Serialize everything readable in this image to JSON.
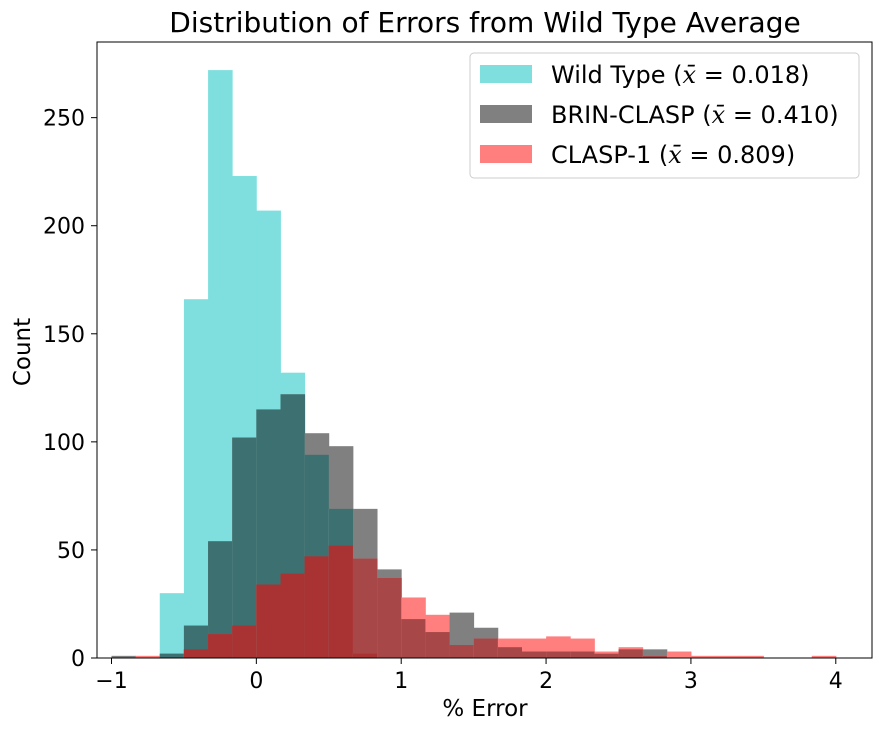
{
  "chart_data": {
    "type": "bar",
    "subtype": "overlaid-histogram",
    "title": "Distribution of Errors from Wild Type Average",
    "xlabel": "% Error",
    "ylabel": "Count",
    "xlim": [
      -1.1,
      4.25
    ],
    "ylim": [
      0,
      285
    ],
    "grid": false,
    "legend_position": "top-right",
    "xticks": [
      -1,
      0,
      1,
      2,
      3,
      4
    ],
    "xtick_labels": [
      "−1",
      "0",
      "1",
      "2",
      "3",
      "4"
    ],
    "yticks": [
      0,
      50,
      100,
      150,
      200,
      250
    ],
    "ytick_labels": [
      "0",
      "50",
      "100",
      "150",
      "200",
      "250"
    ],
    "bin_start": -1.0,
    "bin_width": 0.1667,
    "bin_count": 30,
    "series": [
      {
        "name": "Wild Type",
        "legend_prefix": "Wild Type (",
        "legend_mean_label": " = 0.018)",
        "color": "#7fdfdf",
        "values": [
          0,
          0,
          30,
          166,
          272,
          223,
          207,
          132,
          94,
          69,
          2,
          0,
          0,
          0,
          0,
          0,
          0,
          0,
          0,
          0,
          0,
          0,
          0,
          0,
          0,
          0,
          0,
          0,
          0,
          0
        ]
      },
      {
        "name": "BRIN-CLASP",
        "legend_prefix": "BRIN-CLASP (",
        "legend_mean_label": " = 0.410)",
        "color": "#808080",
        "values": [
          1,
          0,
          2,
          15,
          54,
          102,
          115,
          122,
          104,
          98,
          69,
          41,
          18,
          12,
          21,
          14,
          5,
          3,
          3,
          3,
          2,
          4,
          4,
          0,
          0,
          0,
          0,
          0,
          0,
          0
        ]
      },
      {
        "name": "CLASP-1",
        "legend_prefix": "CLASP-1 (",
        "legend_mean_label": " = 0.809)",
        "color": "#ff7f7f",
        "values": [
          0,
          1,
          0,
          4,
          11,
          15,
          34,
          39,
          47,
          52,
          46,
          37,
          28,
          20,
          6,
          9,
          9,
          9,
          10,
          9,
          3,
          5,
          1,
          3,
          1,
          1,
          1,
          0,
          0,
          1
        ]
      }
    ],
    "overlap_colors": {
      "wild_brin": "#3d7070",
      "wild_clasp": "#a84b4b",
      "brin_clasp": "#a84747",
      "all": "#a93333"
    }
  }
}
